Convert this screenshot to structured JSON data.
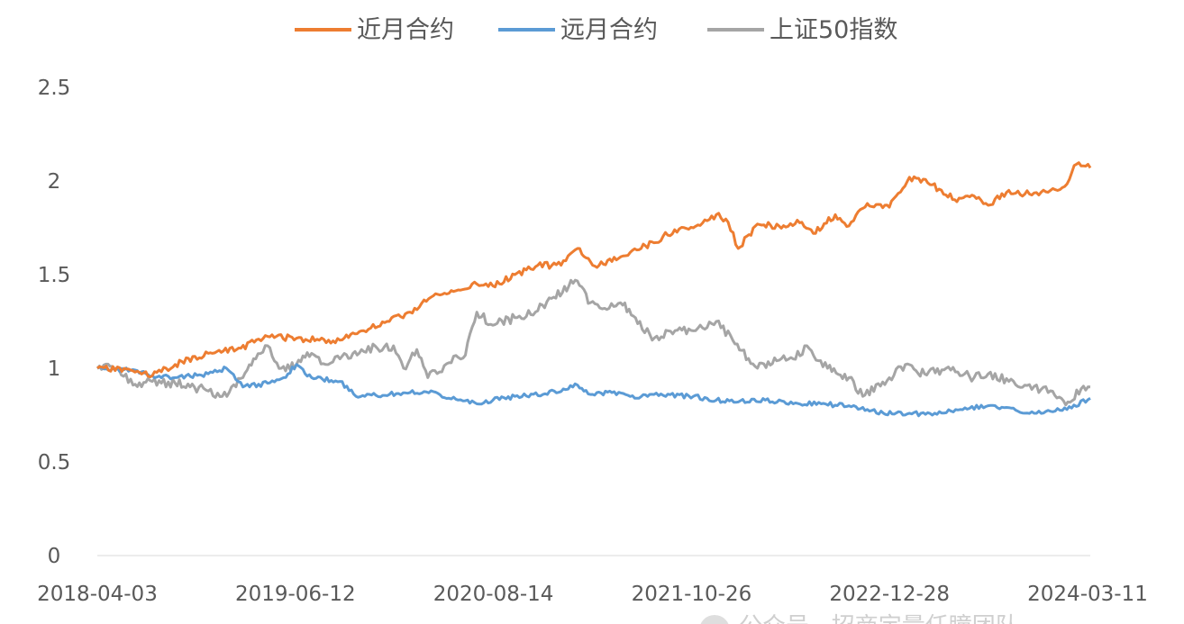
{
  "chart_data": {
    "type": "line",
    "title": "",
    "xlabel": "",
    "ylabel": "",
    "x_start": "2018-04-03",
    "x_end": "2024-03-11",
    "x_ticks": [
      "2018-04-03",
      "2019-06-12",
      "2020-08-14",
      "2021-10-26",
      "2022-12-28",
      "2024-03-11"
    ],
    "y_ticks": [
      "0",
      "0.5",
      "1",
      "1.5",
      "2",
      "2.5"
    ],
    "ylim": [
      0,
      2.5
    ],
    "grid": false,
    "legend_position": "top",
    "series": [
      {
        "name": "近月合约",
        "color": "#ED7D31",
        "points": [
          [
            "2018-04-03",
            1.0
          ],
          [
            "2018-06-15",
            0.99
          ],
          [
            "2018-08-01",
            0.96
          ],
          [
            "2018-09-20",
            1.02
          ],
          [
            "2018-12-01",
            1.08
          ],
          [
            "2019-02-01",
            1.1
          ],
          [
            "2019-04-10",
            1.17
          ],
          [
            "2019-06-12",
            1.16
          ],
          [
            "2019-08-01",
            1.15
          ],
          [
            "2019-09-15",
            1.15
          ],
          [
            "2019-11-01",
            1.2
          ],
          [
            "2020-01-01",
            1.25
          ],
          [
            "2020-02-15",
            1.3
          ],
          [
            "2020-04-01",
            1.38
          ],
          [
            "2020-05-20",
            1.41
          ],
          [
            "2020-07-10",
            1.45
          ],
          [
            "2020-08-14",
            1.44
          ],
          [
            "2020-10-01",
            1.5
          ],
          [
            "2020-11-20",
            1.55
          ],
          [
            "2021-01-10",
            1.55
          ],
          [
            "2021-02-15",
            1.64
          ],
          [
            "2021-03-20",
            1.55
          ],
          [
            "2021-05-01",
            1.57
          ],
          [
            "2021-06-15",
            1.63
          ],
          [
            "2021-08-01",
            1.67
          ],
          [
            "2021-09-15",
            1.74
          ],
          [
            "2021-10-26",
            1.75
          ],
          [
            "2021-12-15",
            1.82
          ],
          [
            "2022-01-10",
            1.78
          ],
          [
            "2022-02-01",
            1.64
          ],
          [
            "2022-03-15",
            1.77
          ],
          [
            "2022-05-01",
            1.76
          ],
          [
            "2022-06-20",
            1.78
          ],
          [
            "2022-07-15",
            1.72
          ],
          [
            "2022-09-01",
            1.82
          ],
          [
            "2022-10-01",
            1.76
          ],
          [
            "2022-11-10",
            1.88
          ],
          [
            "2022-12-28",
            1.86
          ],
          [
            "2023-02-10",
            2.02
          ],
          [
            "2023-04-01",
            1.98
          ],
          [
            "2023-05-20",
            1.9
          ],
          [
            "2023-07-01",
            1.92
          ],
          [
            "2023-08-01",
            1.87
          ],
          [
            "2023-09-15",
            1.95
          ],
          [
            "2023-10-20",
            1.93
          ],
          [
            "2023-12-15",
            1.95
          ],
          [
            "2024-01-15",
            1.97
          ],
          [
            "2024-02-10",
            2.09
          ],
          [
            "2024-03-11",
            2.07
          ]
        ]
      },
      {
        "name": "远月合约",
        "color": "#5B9BD5",
        "points": [
          [
            "2018-04-03",
            1.0
          ],
          [
            "2018-06-15",
            0.99
          ],
          [
            "2018-08-01",
            0.96
          ],
          [
            "2018-09-20",
            0.95
          ],
          [
            "2018-12-01",
            0.97
          ],
          [
            "2019-01-10",
            1.0
          ],
          [
            "2019-02-15",
            0.9
          ],
          [
            "2019-04-10",
            0.92
          ],
          [
            "2019-05-15",
            0.95
          ],
          [
            "2019-06-12",
            1.02
          ],
          [
            "2019-07-15",
            0.95
          ],
          [
            "2019-09-15",
            0.93
          ],
          [
            "2019-10-20",
            0.85
          ],
          [
            "2020-01-01",
            0.86
          ],
          [
            "2020-02-15",
            0.87
          ],
          [
            "2020-04-01",
            0.88
          ],
          [
            "2020-05-10",
            0.84
          ],
          [
            "2020-07-10",
            0.81
          ],
          [
            "2020-08-14",
            0.83
          ],
          [
            "2020-10-01",
            0.85
          ],
          [
            "2020-12-01",
            0.86
          ],
          [
            "2021-01-15",
            0.89
          ],
          [
            "2021-02-15",
            0.91
          ],
          [
            "2021-03-15",
            0.86
          ],
          [
            "2021-05-01",
            0.87
          ],
          [
            "2021-06-20",
            0.84
          ],
          [
            "2021-08-01",
            0.86
          ],
          [
            "2021-10-26",
            0.85
          ],
          [
            "2021-12-15",
            0.83
          ],
          [
            "2022-02-01",
            0.82
          ],
          [
            "2022-04-01",
            0.83
          ],
          [
            "2022-06-01",
            0.81
          ],
          [
            "2022-08-01",
            0.81
          ],
          [
            "2022-10-01",
            0.8
          ],
          [
            "2022-11-10",
            0.78
          ],
          [
            "2022-12-15",
            0.76
          ],
          [
            "2023-02-10",
            0.76
          ],
          [
            "2023-04-01",
            0.75
          ],
          [
            "2023-06-01",
            0.78
          ],
          [
            "2023-08-01",
            0.8
          ],
          [
            "2023-09-15",
            0.79
          ],
          [
            "2023-10-20",
            0.76
          ],
          [
            "2023-12-15",
            0.77
          ],
          [
            "2024-01-20",
            0.78
          ],
          [
            "2024-03-11",
            0.84
          ]
        ]
      },
      {
        "name": "上证50指数",
        "color": "#A5A5A5",
        "points": [
          [
            "2018-04-03",
            1.0
          ],
          [
            "2018-05-15",
            1.0
          ],
          [
            "2018-06-20",
            0.91
          ],
          [
            "2018-08-01",
            0.93
          ],
          [
            "2018-09-20",
            0.92
          ],
          [
            "2018-11-01",
            0.9
          ],
          [
            "2019-01-01",
            0.85
          ],
          [
            "2019-02-15",
            0.95
          ],
          [
            "2019-03-15",
            1.05
          ],
          [
            "2019-04-10",
            1.12
          ],
          [
            "2019-05-10",
            1.0
          ],
          [
            "2019-06-12",
            1.02
          ],
          [
            "2019-07-15",
            1.08
          ],
          [
            "2019-08-15",
            1.02
          ],
          [
            "2019-09-15",
            1.05
          ],
          [
            "2019-11-01",
            1.1
          ],
          [
            "2020-01-10",
            1.12
          ],
          [
            "2020-02-01",
            1.0
          ],
          [
            "2020-03-01",
            1.1
          ],
          [
            "2020-03-25",
            0.95
          ],
          [
            "2020-05-10",
            1.03
          ],
          [
            "2020-06-15",
            1.07
          ],
          [
            "2020-07-10",
            1.3
          ],
          [
            "2020-08-14",
            1.23
          ],
          [
            "2020-10-01",
            1.27
          ],
          [
            "2020-11-15",
            1.3
          ],
          [
            "2020-12-25",
            1.38
          ],
          [
            "2021-02-10",
            1.47
          ],
          [
            "2021-03-15",
            1.35
          ],
          [
            "2021-04-15",
            1.32
          ],
          [
            "2021-05-20",
            1.35
          ],
          [
            "2021-07-01",
            1.25
          ],
          [
            "2021-07-28",
            1.15
          ],
          [
            "2021-09-01",
            1.2
          ],
          [
            "2021-10-26",
            1.2
          ],
          [
            "2021-12-15",
            1.25
          ],
          [
            "2022-01-20",
            1.15
          ],
          [
            "2022-03-15",
            1.0
          ],
          [
            "2022-04-26",
            1.04
          ],
          [
            "2022-06-01",
            1.05
          ],
          [
            "2022-07-01",
            1.12
          ],
          [
            "2022-08-15",
            1.0
          ],
          [
            "2022-10-01",
            0.95
          ],
          [
            "2022-10-31",
            0.85
          ],
          [
            "2022-12-28",
            0.95
          ],
          [
            "2023-02-01",
            1.02
          ],
          [
            "2023-03-15",
            0.97
          ],
          [
            "2023-05-01",
            1.0
          ],
          [
            "2023-07-01",
            0.95
          ],
          [
            "2023-08-01",
            0.97
          ],
          [
            "2023-09-15",
            0.93
          ],
          [
            "2023-10-20",
            0.91
          ],
          [
            "2023-12-15",
            0.88
          ],
          [
            "2024-01-22",
            0.82
          ],
          [
            "2024-02-20",
            0.89
          ],
          [
            "2024-03-11",
            0.9
          ]
        ]
      }
    ]
  },
  "watermark": {
    "text": "公众号 · 招商定量任瞳团队"
  }
}
